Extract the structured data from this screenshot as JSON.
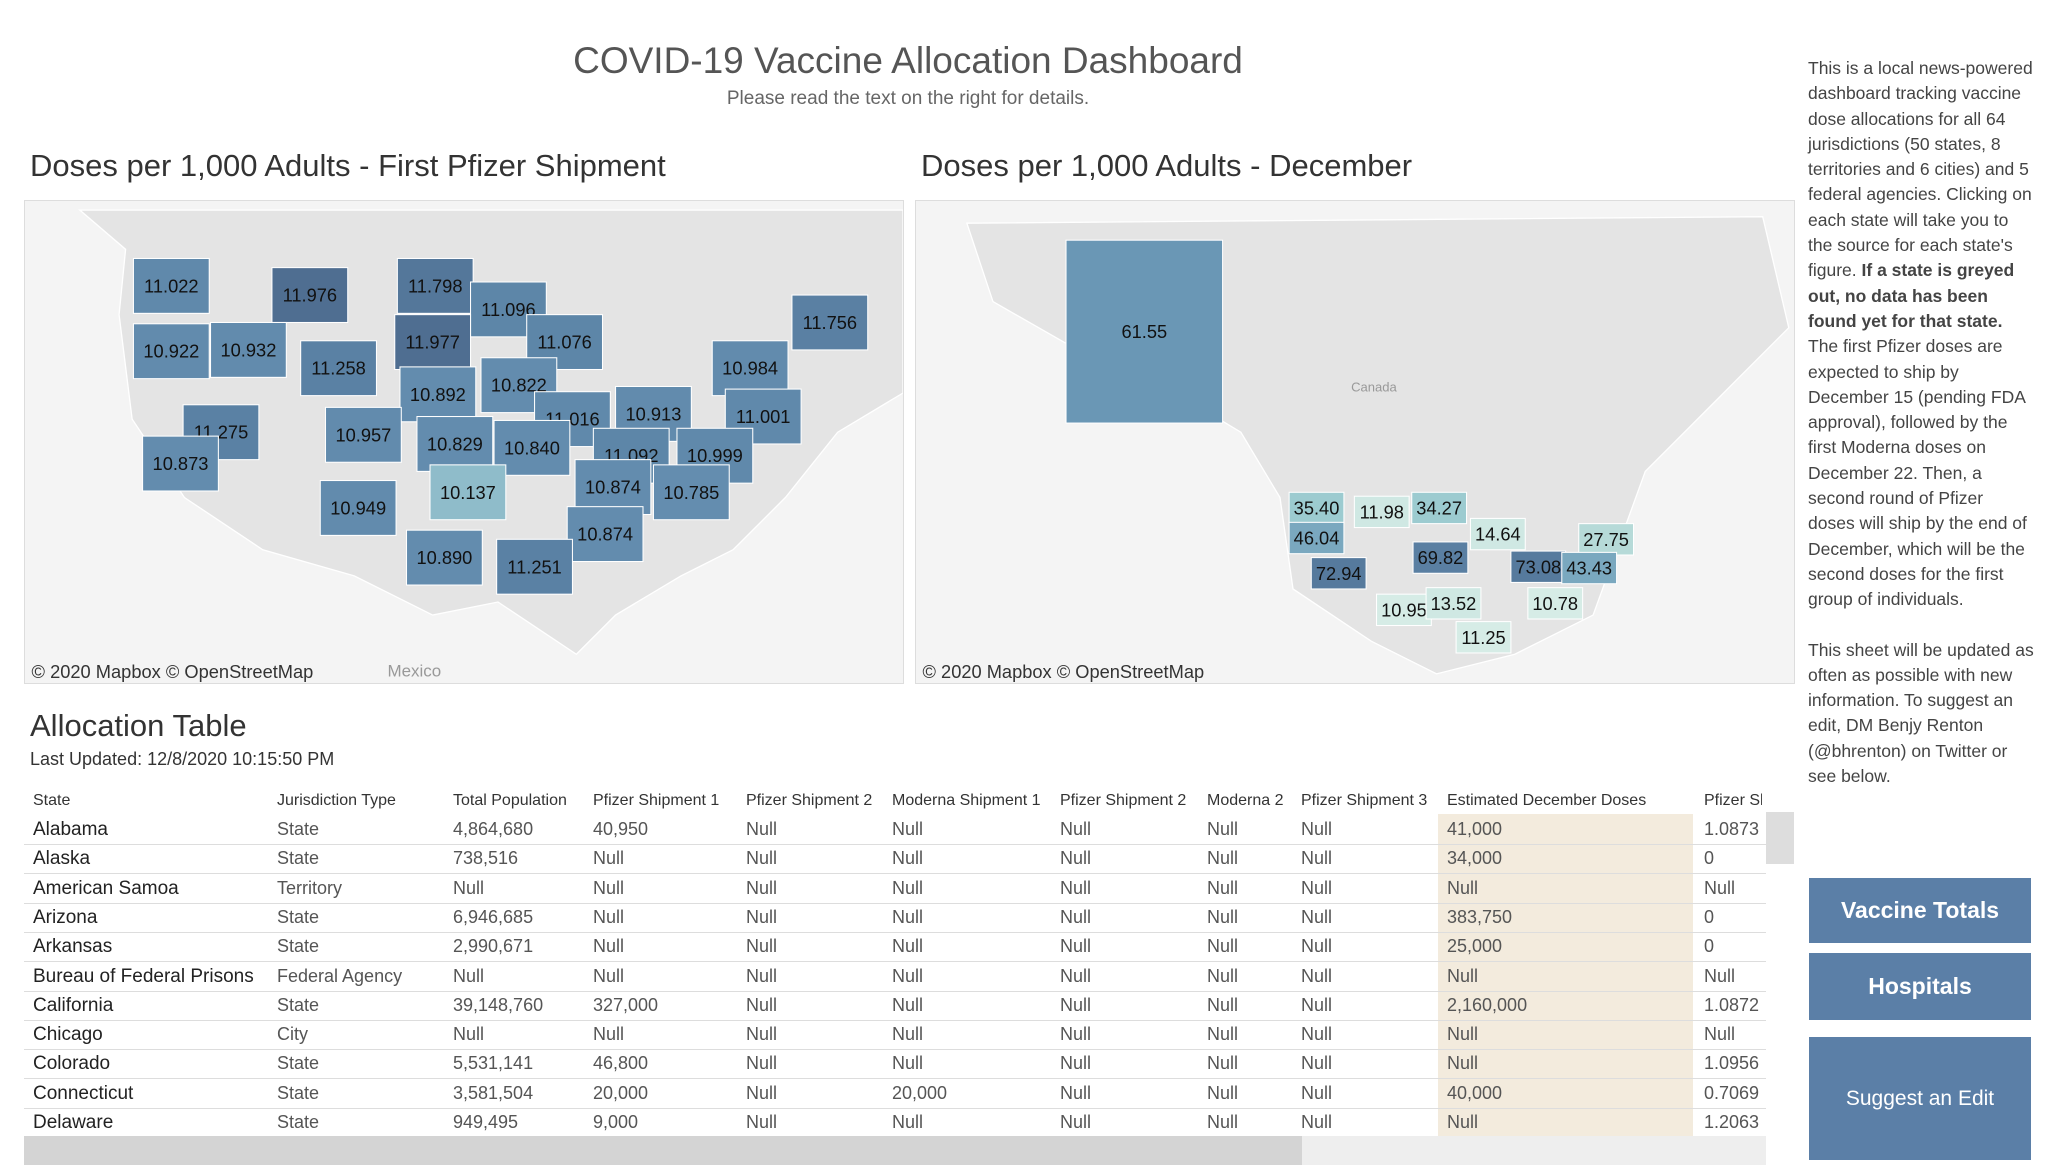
{
  "header": {
    "title": "COVID-19 Vaccine Allocation Dashboard",
    "subtitle": "Please read the text on the right for details."
  },
  "maps": [
    {
      "title": "Doses per 1,000 Adults - First Pfizer Shipment",
      "attribution": "© 2020 Mapbox  © OpenStreetMap",
      "place": "Mexico",
      "regions": [
        {
          "label": "11.022",
          "color": "#6089ab"
        },
        {
          "label": "11.976",
          "color": "#4f6e91"
        },
        {
          "label": "11.798",
          "color": "#54779a"
        },
        {
          "label": "11.096",
          "color": "#5d86a8"
        },
        {
          "label": "11.756",
          "color": "#5a80a3"
        },
        {
          "label": "10.922",
          "color": "#628bad"
        },
        {
          "label": "10.932",
          "color": "#628bad"
        },
        {
          "label": "11.258",
          "color": "#5a81a4"
        },
        {
          "label": "11.977",
          "color": "#4f6e91"
        },
        {
          "label": "11.076",
          "color": "#5d86a8"
        },
        {
          "label": "10.984",
          "color": "#628bad"
        },
        {
          "label": "10.892",
          "color": "#638cae"
        },
        {
          "label": "10.822",
          "color": "#638cae"
        },
        {
          "label": "11.275",
          "color": "#5a81a4"
        },
        {
          "label": "10.957",
          "color": "#628bad"
        },
        {
          "label": "10.829",
          "color": "#638cae"
        },
        {
          "label": "11.016",
          "color": "#6089ab"
        },
        {
          "label": "10.913",
          "color": "#628bad"
        },
        {
          "label": "11.001",
          "color": "#6089ab"
        },
        {
          "label": "10.873",
          "color": "#638cae"
        },
        {
          "label": "10.840",
          "color": "#638cae"
        },
        {
          "label": "11.092",
          "color": "#5d86a8"
        },
        {
          "label": "10.999",
          "color": "#6089ab"
        },
        {
          "label": "10.137",
          "color": "#8fbcca"
        },
        {
          "label": "10.874",
          "color": "#638cae"
        },
        {
          "label": "10.785",
          "color": "#648daf"
        },
        {
          "label": "10.949",
          "color": "#628bad"
        },
        {
          "label": "10.874",
          "color": "#638cae"
        },
        {
          "label": "10.890",
          "color": "#638cae"
        },
        {
          "label": "11.251",
          "color": "#5a81a4"
        }
      ]
    },
    {
      "title": "Doses per 1,000 Adults - December",
      "attribution": "© 2020 Mapbox  © OpenStreetMap",
      "place": "Canada",
      "regions": [
        {
          "label": "61.55",
          "color": "#6a97b5"
        },
        {
          "label": "35.40",
          "color": "#9ccbd0"
        },
        {
          "label": "11.98",
          "color": "#cfe8e3"
        },
        {
          "label": "34.27",
          "color": "#9ccbd0"
        },
        {
          "label": "46.04",
          "color": "#7aa8bf"
        },
        {
          "label": "14.64",
          "color": "#cfe8e3"
        },
        {
          "label": "27.75",
          "color": "#b6dad8"
        },
        {
          "label": "69.82",
          "color": "#5a7fa2"
        },
        {
          "label": "72.94",
          "color": "#567a9d"
        },
        {
          "label": "73.08",
          "color": "#567a9d"
        },
        {
          "label": "43.43",
          "color": "#7aa8bf"
        },
        {
          "label": "10.95",
          "color": "#d6ece6"
        },
        {
          "label": "13.52",
          "color": "#cfe8e3"
        },
        {
          "label": "10.78",
          "color": "#d6ece6"
        },
        {
          "label": "11.25",
          "color": "#d6ece6"
        }
      ]
    }
  ],
  "table": {
    "title": "Allocation Table",
    "updated": "Last Updated: 12/8/2020 10:15:50 PM",
    "header": [
      "State",
      "Jurisdiction Type",
      "Total Population",
      "Pfizer Shipment 1",
      "Pfizer Shipment 2",
      "Moderna Shipment 1",
      "Pfizer Shipment 2",
      "Moderna 2",
      "Pfizer Shipment 3",
      "Estimated December Doses",
      "Pfizer Sh"
    ],
    "rows": [
      [
        "Alabama",
        "State",
        "4,864,680",
        "40,950",
        "Null",
        "Null",
        "Null",
        "Null",
        "Null",
        "41,000",
        "1.0873"
      ],
      [
        "Alaska",
        "State",
        "738,516",
        "Null",
        "Null",
        "Null",
        "Null",
        "Null",
        "Null",
        "34,000",
        "0"
      ],
      [
        "American Samoa",
        "Territory",
        "Null",
        "Null",
        "Null",
        "Null",
        "Null",
        "Null",
        "Null",
        "Null",
        "Null"
      ],
      [
        "Arizona",
        "State",
        "6,946,685",
        "Null",
        "Null",
        "Null",
        "Null",
        "Null",
        "Null",
        "383,750",
        "0"
      ],
      [
        "Arkansas",
        "State",
        "2,990,671",
        "Null",
        "Null",
        "Null",
        "Null",
        "Null",
        "Null",
        "25,000",
        "0"
      ],
      [
        "Bureau of Federal Prisons",
        "Federal Agency",
        "Null",
        "Null",
        "Null",
        "Null",
        "Null",
        "Null",
        "Null",
        "Null",
        "Null"
      ],
      [
        "California",
        "State",
        "39,148,760",
        "327,000",
        "Null",
        "Null",
        "Null",
        "Null",
        "Null",
        "2,160,000",
        "1.0872"
      ],
      [
        "Chicago",
        "City",
        "Null",
        "Null",
        "Null",
        "Null",
        "Null",
        "Null",
        "Null",
        "Null",
        "Null"
      ],
      [
        "Colorado",
        "State",
        "5,531,141",
        "46,800",
        "Null",
        "Null",
        "Null",
        "Null",
        "Null",
        "Null",
        "1.0956"
      ],
      [
        "Connecticut",
        "State",
        "3,581,504",
        "20,000",
        "Null",
        "20,000",
        "Null",
        "Null",
        "Null",
        "40,000",
        "0.7069"
      ],
      [
        "Delaware",
        "State",
        "949,495",
        "9,000",
        "Null",
        "Null",
        "Null",
        "Null",
        "Null",
        "Null",
        "1.2063"
      ]
    ]
  },
  "sidebar": {
    "intro": "This is a local news-powered dashboard tracking vaccine dose allocations for all 64 jurisdictions (50 states, 8 territories and 6 cities) and 5 federal agencies. Clicking on each state will take you to the source for each state's figure.",
    "note": "If a state is greyed out, no data has been found yet for that state.",
    "schedule": "The first Pfizer doses are expected to ship by December 15 (pending FDA approval), followed by the first Moderna doses on December 22. Then, a second round of Pfizer doses will ship by the end of December, which will be the second doses for the first group of individuals.",
    "updates": "This sheet will be updated as often as possible with new information. To suggest an edit, DM Benjy Renton (@bhrenton) on Twitter or see below.",
    "buttons": [
      "Vaccine Totals",
      "Hospitals",
      "Suggest an Edit"
    ]
  }
}
